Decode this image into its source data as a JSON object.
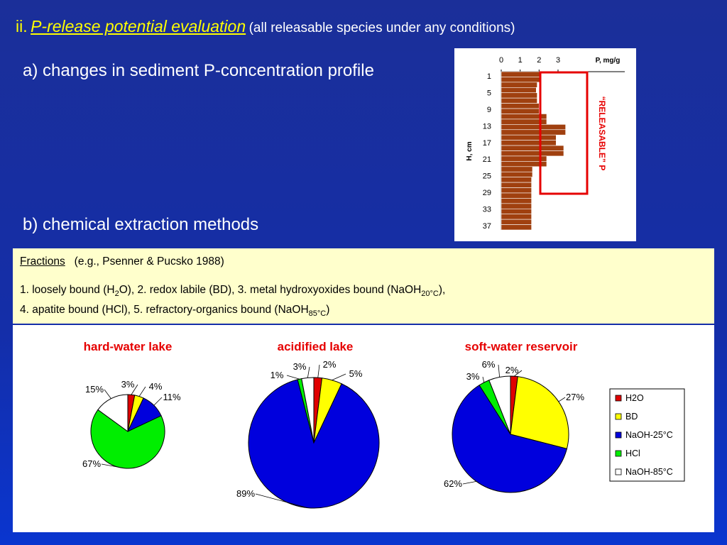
{
  "slide": {
    "title_number": "ii.",
    "title_main": "P-release potential evaluation",
    "title_note": "(all releasable species under any conditions)",
    "section_a": "a) changes in sediment P-concentration profile",
    "section_b": "b) chemical extraction methods",
    "colors": {
      "background": "#1a34b0",
      "title": "#ffff00",
      "panel": "#ffffcc",
      "accent_red": "#e60000"
    }
  },
  "fractions": {
    "label": "Fractions",
    "reference": "(e.g., Psenner & Pucsko 1988)",
    "line1": "1. loosely bound (H",
    "line1_sub1": "2",
    "line1_b": "O), 2. redox labile (BD), 3. metal hydroxyoxides bound (NaOH",
    "line1_sub2": "20°C",
    "line1_c": "),",
    "line2": "4. apatite bound (HCl), 5. refractory-organics bound (NaOH",
    "line2_sub": "85°C",
    "line2_c": ")"
  },
  "profile_chart": {
    "type": "bar",
    "orientation": "horizontal",
    "xlabel": "P, mg/g",
    "ylabel": "H, cm",
    "x_ticks": [
      "0",
      "1",
      "2",
      "3"
    ],
    "xlim": [
      0,
      3.6
    ],
    "y_ticks": [
      "1",
      "5",
      "9",
      "13",
      "17",
      "21",
      "25",
      "29",
      "33",
      "37"
    ],
    "annotation": "“RELEASABLE” P",
    "bar_color": "#a0400f",
    "values": [
      2.1,
      2.1,
      1.9,
      1.85,
      1.9,
      1.9,
      2.0,
      2.0,
      2.4,
      2.4,
      3.4,
      3.4,
      2.9,
      2.9,
      3.3,
      3.3,
      2.4,
      2.4,
      1.65,
      1.65,
      1.6,
      1.6,
      1.6,
      1.6,
      1.6,
      1.6,
      1.6,
      1.6,
      1.6,
      1.6
    ]
  },
  "legend": [
    "H2O",
    "BD",
    "NaOH-25°C",
    "HCl",
    "NaOH-85°C"
  ],
  "chart_data": [
    {
      "type": "pie",
      "title": "hard-water lake",
      "categories": [
        "H2O",
        "BD",
        "NaOH-25°C",
        "HCl",
        "NaOH-85°C"
      ],
      "values": [
        3,
        4,
        11,
        67,
        15
      ],
      "labels": [
        "3%",
        "4%",
        "11%",
        "67%",
        "15%"
      ],
      "colors": [
        "#e00000",
        "#ffff00",
        "#0000dd",
        "#00ee00",
        "#ffffff"
      ]
    },
    {
      "type": "pie",
      "title": "acidified lake",
      "categories": [
        "H2O",
        "BD",
        "NaOH-25°C",
        "HCl",
        "NaOH-85°C"
      ],
      "values": [
        2,
        5,
        89,
        1,
        3
      ],
      "labels": [
        "2%",
        "5%",
        "89%",
        "1%",
        "3%"
      ],
      "colors": [
        "#e00000",
        "#ffff00",
        "#0000dd",
        "#00ee00",
        "#ffffff"
      ]
    },
    {
      "type": "pie",
      "title": "soft-water reservoir",
      "categories": [
        "H2O",
        "BD",
        "NaOH-25°C",
        "HCl",
        "NaOH-85°C"
      ],
      "values": [
        2,
        27,
        62,
        3,
        6
      ],
      "labels": [
        "2%",
        "27%",
        "62%",
        "3%",
        "6%"
      ],
      "colors": [
        "#e00000",
        "#ffff00",
        "#0000dd",
        "#00ee00",
        "#ffffff"
      ]
    }
  ]
}
